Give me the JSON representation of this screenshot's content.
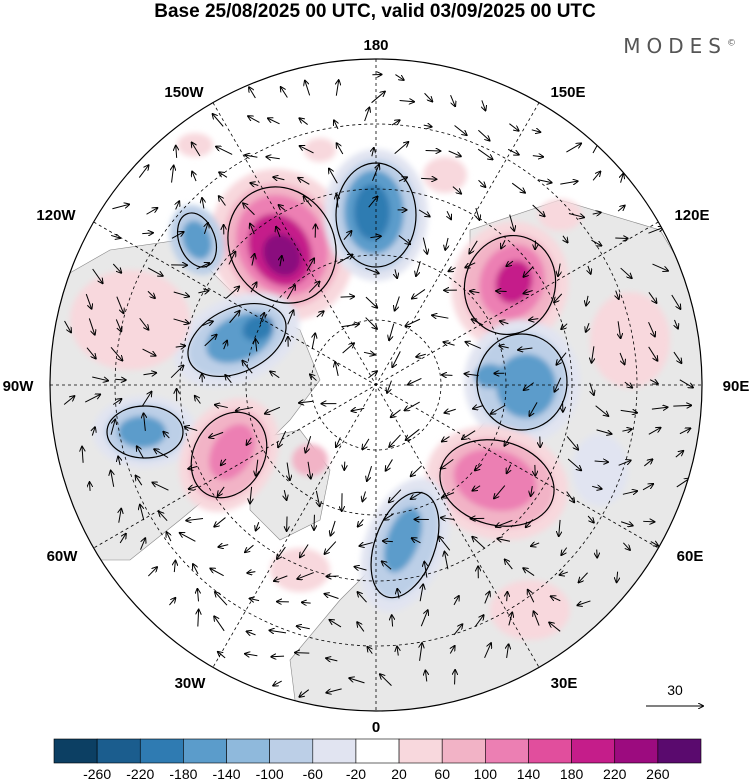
{
  "title": "Base 25/08/2025 00 UTC, valid 03/09/2025 00 UTC",
  "brand": {
    "name": "MODES",
    "mark": "©"
  },
  "meridian_labels": {
    "m180": "180",
    "m150E": "150E",
    "m120E": "120E",
    "m90E": "90E",
    "m60E": "60E",
    "m30E": "30E",
    "m0": "0",
    "m30W": "30W",
    "m60W": "60W",
    "m90W": "90W",
    "m120W": "120W",
    "m150W": "150W"
  },
  "vector_reference": {
    "value": "30"
  },
  "colorbar": {
    "ticks": [
      "-260",
      "-220",
      "-180",
      "-140",
      "-100",
      "-60",
      "-20",
      "20",
      "60",
      "100",
      "140",
      "180",
      "220",
      "260"
    ],
    "colors": [
      "#0c3f63",
      "#1b5d8e",
      "#2f7bb2",
      "#5b9ccb",
      "#8fb9dc",
      "#bccfe7",
      "#e1e4f1",
      "#ffffff",
      "#f8d8dd",
      "#f2b3c6",
      "#ec7fb3",
      "#e14e9d",
      "#c51d8a",
      "#9c0b7f",
      "#5a0a6e"
    ]
  },
  "anomaly_colors": {
    "land": "#e8e8e8",
    "pos_weak": "#f8d8dd",
    "pos_mid": "#f2b3c6",
    "pos_strong": "#ec7fb3",
    "pos_core": "#c51d8a",
    "pos_peak": "#8a0a7e",
    "neg_weak": "#e1e4f1",
    "neg_mid": "#bccfe7",
    "neg_strong": "#5b9ccb",
    "neg_core": "#2f7bb2",
    "neg_peak": "#1b5d8e"
  }
}
